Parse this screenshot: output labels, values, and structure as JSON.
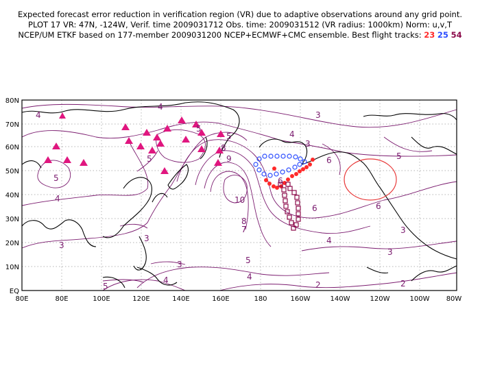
{
  "header": {
    "line1": "Expected forecast error reduction in verification region (VR) due to adaptive observations around any grid point.",
    "line2": "PLOT 17 VR: 47N, -124W, Verif. time 2009031712 Obs. time: 2009031512 (VR radius: 1000km) Norm: u,v,T",
    "line3_prefix": "NCEP/UM ETKF based on 177-member 2009031200 NCEP+ECMWF+CMC ensemble. Best flight tracks:",
    "track_ids": [
      {
        "label": "23",
        "color": "#ff2a2a"
      },
      {
        "label": "25",
        "color": "#2b4cff"
      },
      {
        "label": "54",
        "color": "#8b0a4a"
      }
    ]
  },
  "map": {
    "lat_labels": [
      "80N",
      "70N",
      "60N",
      "50N",
      "40N",
      "30N",
      "20N",
      "10N",
      "EQ"
    ],
    "lon_labels": [
      "80E",
      "80E",
      "100E",
      "120E",
      "140E",
      "160E",
      "180",
      "160W",
      "140W",
      "120W",
      "100W",
      "80W"
    ],
    "contour_labels": [
      "4",
      "4",
      "3",
      "5",
      "5",
      "5",
      "4",
      "6",
      "3",
      "6",
      "5",
      "5",
      "8",
      "9",
      "10",
      "8",
      "7",
      "6",
      "6",
      "5",
      "4",
      "4",
      "3",
      "4",
      "4",
      "3",
      "3",
      "3",
      "5",
      "2",
      "2",
      "3"
    ],
    "verification_region": {
      "center_lat": 47,
      "center_lon": -124,
      "radius_km": 1000
    },
    "colors": {
      "contour": "#7a1a6e",
      "coastline": "#000000",
      "grid": "#9a9a9a",
      "vr_circle": "#e83a3a",
      "track_23": "#ff2a2a",
      "track_25": "#2b4cff",
      "track_54": "#8b0a4a",
      "triangles": "#e0167f"
    }
  }
}
